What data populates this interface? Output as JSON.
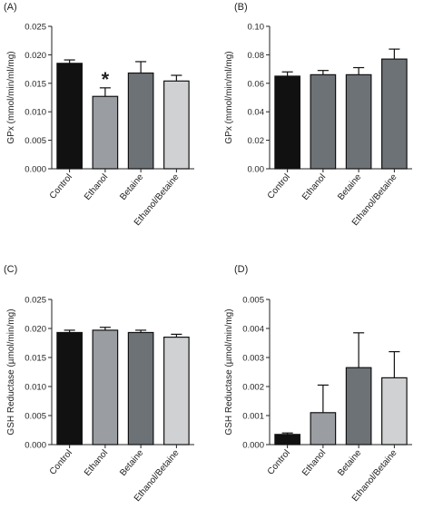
{
  "figure": {
    "background": "#ffffff"
  },
  "chart_data": [
    {
      "panel": "(A)",
      "type": "bar",
      "categories": [
        "Control",
        "Ethanol",
        "Betaine",
        "Ethanol/Betaine"
      ],
      "values": [
        0.0185,
        0.0127,
        0.0168,
        0.0154
      ],
      "errors": [
        0.0006,
        0.0015,
        0.002,
        0.001
      ],
      "colors": [
        "#111111",
        "#9a9ea3",
        "#6d7277",
        "#cfd1d3"
      ],
      "ylabel": "GPx (mmol/min/ml/mg)",
      "ylim": [
        0,
        0.025
      ],
      "yticks": [
        "0.000",
        "0.005",
        "0.010",
        "0.015",
        "0.020",
        "0.025"
      ],
      "annotations": [
        {
          "category": "Ethanol",
          "text": "*"
        }
      ]
    },
    {
      "panel": "(B)",
      "type": "bar",
      "categories": [
        "Control",
        "Ethanol",
        "Betaine",
        "Ethanol/Betaine"
      ],
      "values": [
        0.065,
        0.066,
        0.066,
        0.077
      ],
      "errors": [
        0.003,
        0.003,
        0.005,
        0.007
      ],
      "colors": [
        "#111111",
        "#6d7277",
        "#6d7277",
        "#6d7277"
      ],
      "ylabel": "GPx (mmol/min/ml/mg)",
      "ylim": [
        0,
        0.1
      ],
      "yticks": [
        "0.00",
        "0.02",
        "0.04",
        "0.06",
        "0.08",
        "0.10"
      ],
      "annotations": []
    },
    {
      "panel": "(C)",
      "type": "bar",
      "categories": [
        "Control",
        "Ethanol",
        "Betaine",
        "Ethanol/Betaine"
      ],
      "values": [
        0.0193,
        0.0197,
        0.0193,
        0.0185
      ],
      "errors": [
        0.0004,
        0.0005,
        0.0004,
        0.0005
      ],
      "colors": [
        "#111111",
        "#9a9ea3",
        "#6d7277",
        "#cfd1d3"
      ],
      "ylabel": "GSH Reductase (µmol/min/mg)",
      "ylim": [
        0,
        0.025
      ],
      "yticks": [
        "0.000",
        "0.005",
        "0.010",
        "0.015",
        "0.020",
        "0.025"
      ],
      "annotations": []
    },
    {
      "panel": "(D)",
      "type": "bar",
      "categories": [
        "Control",
        "Ethanol",
        "Betaine",
        "Ethanol/Betaine"
      ],
      "values": [
        0.00035,
        0.0011,
        0.00265,
        0.0023
      ],
      "errors": [
        5e-05,
        0.00095,
        0.0012,
        0.0009
      ],
      "colors": [
        "#111111",
        "#9a9ea3",
        "#6d7277",
        "#cfd1d3"
      ],
      "ylabel": "GSH Reductase (µmol/min/mg)",
      "ylim": [
        0,
        0.005
      ],
      "yticks": [
        "0.000",
        "0.001",
        "0.002",
        "0.003",
        "0.004",
        "0.005"
      ],
      "annotations": []
    }
  ]
}
